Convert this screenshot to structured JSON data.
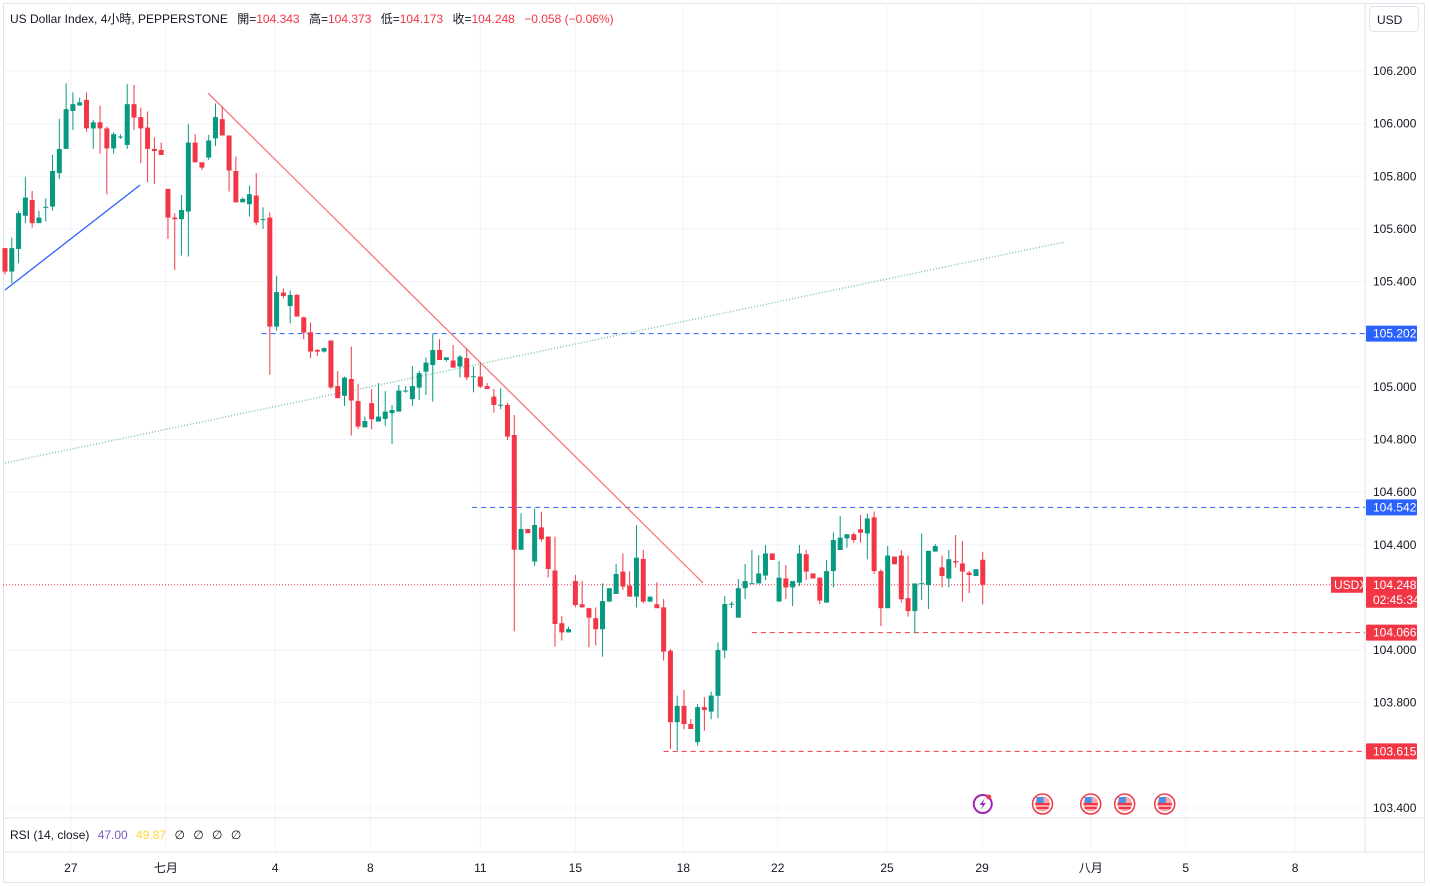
{
  "header": {
    "symbol": "US Dollar Index, 4小時, PEPPERSTONE",
    "open_label": "開=",
    "open": "104.343",
    "high_label": "高=",
    "high": "104.373",
    "low_label": "低=",
    "low": "104.173",
    "close_label": "收=",
    "close": "104.248",
    "change": "−0.058 (−0.06%)"
  },
  "currency_button": "USD",
  "rsi": {
    "label": "RSI (14, close)",
    "value1": "47.00",
    "value2": "49.87",
    "extra": [
      "∅",
      "∅",
      "∅",
      "∅"
    ],
    "color1": "#7e57c2",
    "color2": "#fdd835"
  },
  "colors": {
    "up": "#089981",
    "down": "#f23645",
    "blue": "#2962ff",
    "trend_red": "#f7787c",
    "trend_green": "#7cc4a4"
  },
  "chart_data": {
    "type": "candlestick",
    "ylim": [
      103.33,
      106.36
    ],
    "y_ticks": [
      "106.200",
      "106.000",
      "105.800",
      "105.600",
      "105.400",
      "105.000",
      "104.800",
      "104.600",
      "104.400",
      "104.000",
      "103.800",
      "103.400"
    ],
    "x_ticks": [
      {
        "label": "27",
        "bar": 10.7
      },
      {
        "label": "七月",
        "bar": 24.7
      },
      {
        "label": "4",
        "bar": 40.8
      },
      {
        "label": "8",
        "bar": 54.8
      },
      {
        "label": "11",
        "bar": 71
      },
      {
        "label": "15",
        "bar": 85
      },
      {
        "label": "18",
        "bar": 100.9
      },
      {
        "label": "22",
        "bar": 114.8
      },
      {
        "label": "25",
        "bar": 130.9
      },
      {
        "label": "29",
        "bar": 144.9
      },
      {
        "label": "八月",
        "bar": 160.9
      },
      {
        "label": "5",
        "bar": 174.9
      },
      {
        "label": "8",
        "bar": 191
      }
    ],
    "candles": [
      [
        105.527,
        105.527,
        105.428,
        105.438
      ],
      [
        105.438,
        105.567,
        105.394,
        105.527
      ],
      [
        105.524,
        105.669,
        105.47,
        105.66
      ],
      [
        105.65,
        105.798,
        105.622,
        105.719
      ],
      [
        105.71,
        105.744,
        105.605,
        105.622
      ],
      [
        105.622,
        105.669,
        105.622,
        105.643
      ],
      [
        105.682,
        105.716,
        105.628,
        105.684
      ],
      [
        105.685,
        105.881,
        105.669,
        105.82
      ],
      [
        105.812,
        106.018,
        105.79,
        105.904
      ],
      [
        105.904,
        106.153,
        105.904,
        106.055
      ],
      [
        106.048,
        106.119,
        105.976,
        106.074
      ],
      [
        106.069,
        106.099,
        106.069,
        106.081
      ],
      [
        106.09,
        106.119,
        105.97,
        105.982
      ],
      [
        105.982,
        106.014,
        105.904,
        106.005
      ],
      [
        106.005,
        106.069,
        105.886,
        105.982
      ],
      [
        105.982,
        105.989,
        105.732,
        105.906
      ],
      [
        105.906,
        105.967,
        105.886,
        105.96
      ],
      [
        105.951,
        105.96,
        105.942,
        105.951
      ],
      [
        105.919,
        106.15,
        105.904,
        106.074
      ],
      [
        106.074,
        106.147,
        105.976,
        106.023
      ],
      [
        106.025,
        106.061,
        105.85,
        105.982
      ],
      [
        105.985,
        106.046,
        105.777,
        105.904
      ],
      [
        105.904,
        105.948,
        105.77,
        105.896
      ],
      [
        105.9,
        105.928,
        105.881,
        105.881
      ],
      [
        105.752,
        105.752,
        105.562,
        105.643
      ],
      [
        105.643,
        105.66,
        105.444,
        105.637
      ],
      [
        105.637,
        105.729,
        105.499,
        105.672
      ],
      [
        105.666,
        105.998,
        105.495,
        105.928
      ],
      [
        105.928,
        105.96,
        105.853,
        105.853
      ],
      [
        105.853,
        105.853,
        105.824,
        105.833
      ],
      [
        105.871,
        105.957,
        105.862,
        105.936
      ],
      [
        105.944,
        106.077,
        105.915,
        106.025
      ],
      [
        106.017,
        106.065,
        105.955,
        105.955
      ],
      [
        105.955,
        105.955,
        105.742,
        105.822
      ],
      [
        105.82,
        105.875,
        105.701,
        105.701
      ],
      [
        105.701,
        105.72,
        105.701,
        105.714
      ],
      [
        105.694,
        105.765,
        105.647,
        105.732
      ],
      [
        105.727,
        105.812,
        105.615,
        105.624
      ],
      [
        105.637,
        105.682,
        105.6,
        105.637
      ],
      [
        105.643,
        105.663,
        105.046,
        105.229
      ],
      [
        105.229,
        105.422,
        105.213,
        105.36
      ],
      [
        105.358,
        105.374,
        105.336,
        105.345
      ],
      [
        105.307,
        105.366,
        105.241,
        105.349
      ],
      [
        105.349,
        105.353,
        105.267,
        105.267
      ],
      [
        105.264,
        105.267,
        105.181,
        105.206
      ],
      [
        105.207,
        105.245,
        105.109,
        105.134
      ],
      [
        105.14,
        105.144,
        105.117,
        105.134
      ],
      [
        105.134,
        105.15,
        105.13,
        105.147
      ],
      [
        105.176,
        105.176,
        104.992,
        104.998
      ],
      [
        105.003,
        105.06,
        104.957,
        104.957
      ],
      [
        104.966,
        105.039,
        104.928,
        105.035
      ],
      [
        105.03,
        105.153,
        104.815,
        104.948
      ],
      [
        104.946,
        105.011,
        104.839,
        104.849
      ],
      [
        104.846,
        104.887,
        104.846,
        104.87
      ],
      [
        104.938,
        104.992,
        104.839,
        104.877
      ],
      [
        104.868,
        105.014,
        104.868,
        104.887
      ],
      [
        104.878,
        104.984,
        104.852,
        104.906
      ],
      [
        104.9,
        104.931,
        104.783,
        104.912
      ],
      [
        104.906,
        105.007,
        104.906,
        104.986
      ],
      [
        104.982,
        105.003,
        104.978,
        104.986
      ],
      [
        104.953,
        105.079,
        104.928,
        105.003
      ],
      [
        104.997,
        105.062,
        104.95,
        105.052
      ],
      [
        105.058,
        105.112,
        104.969,
        105.092
      ],
      [
        105.083,
        105.2,
        104.944,
        105.14
      ],
      [
        105.14,
        105.181,
        105.102,
        105.102
      ],
      [
        105.102,
        105.112,
        105.096,
        105.112
      ],
      [
        105.1,
        105.159,
        105.073,
        105.073
      ],
      [
        105.077,
        105.121,
        105.036,
        105.115
      ],
      [
        105.109,
        105.146,
        105.026,
        105.036
      ],
      [
        105.039,
        105.077,
        104.979,
        105.04
      ],
      [
        105.039,
        105.092,
        104.995,
        105.001
      ],
      [
        105.003,
        105.014,
        104.992,
        104.992
      ],
      [
        104.963,
        104.992,
        104.902,
        104.931
      ],
      [
        104.931,
        104.995,
        104.915,
        104.932
      ],
      [
        104.931,
        104.94,
        104.798,
        104.811
      ],
      [
        104.817,
        104.893,
        104.071,
        104.381
      ],
      [
        104.381,
        104.52,
        104.381,
        104.46
      ],
      [
        104.46,
        104.46,
        104.444,
        104.444
      ],
      [
        104.336,
        104.538,
        104.319,
        104.475
      ],
      [
        104.466,
        104.526,
        104.412,
        104.421
      ],
      [
        104.431,
        104.431,
        104.276,
        104.308
      ],
      [
        104.302,
        104.431,
        104.013,
        104.099
      ],
      [
        104.102,
        104.129,
        104.036,
        104.067
      ],
      [
        104.067,
        104.089,
        104.067,
        104.08
      ],
      [
        104.262,
        104.285,
        104.162,
        104.171
      ],
      [
        104.174,
        104.262,
        104.162,
        104.162
      ],
      [
        104.159,
        104.161,
        104.01,
        104.123
      ],
      [
        104.121,
        104.162,
        104.018,
        104.079
      ],
      [
        104.079,
        104.253,
        103.975,
        104.186
      ],
      [
        104.184,
        104.235,
        104.184,
        104.235
      ],
      [
        104.213,
        104.327,
        104.213,
        104.289
      ],
      [
        104.298,
        104.367,
        104.228,
        104.241
      ],
      [
        104.245,
        104.3,
        104.203,
        104.203
      ],
      [
        104.203,
        104.475,
        104.162,
        104.351
      ],
      [
        104.346,
        104.38,
        104.178,
        104.184
      ],
      [
        104.184,
        104.203,
        104.184,
        104.203
      ],
      [
        104.174,
        104.257,
        104.159,
        104.159
      ],
      [
        104.162,
        104.194,
        103.96,
        103.994
      ],
      [
        103.997,
        104.004,
        103.624,
        103.726
      ],
      [
        103.726,
        103.827,
        103.618,
        103.788
      ],
      [
        103.788,
        103.848,
        103.699,
        103.719
      ],
      [
        103.719,
        103.738,
        103.7,
        103.7
      ],
      [
        103.65,
        103.794,
        103.637,
        103.783
      ],
      [
        103.783,
        103.821,
        103.694,
        103.772
      ],
      [
        103.766,
        103.842,
        103.737,
        103.827
      ],
      [
        103.826,
        104.029,
        103.741,
        104.0
      ],
      [
        103.998,
        104.205,
        103.969,
        104.175
      ],
      [
        104.175,
        104.184,
        104.159,
        104.176
      ],
      [
        104.123,
        104.27,
        104.123,
        104.235
      ],
      [
        104.235,
        104.327,
        104.194,
        104.262
      ],
      [
        104.253,
        104.38,
        104.253,
        104.254
      ],
      [
        104.253,
        104.361,
        104.253,
        104.291
      ],
      [
        104.283,
        104.399,
        104.266,
        104.367
      ],
      [
        104.367,
        104.367,
        104.342,
        104.342
      ],
      [
        104.184,
        104.338,
        104.184,
        104.275
      ],
      [
        104.272,
        104.323,
        104.194,
        104.238
      ],
      [
        104.238,
        104.262,
        104.167,
        104.262
      ],
      [
        104.256,
        104.399,
        104.243,
        104.367
      ],
      [
        104.364,
        104.38,
        104.266,
        104.298
      ],
      [
        104.291,
        104.291,
        104.272,
        104.272
      ],
      [
        104.275,
        104.275,
        104.175,
        104.188
      ],
      [
        104.18,
        104.342,
        104.18,
        104.3
      ],
      [
        104.3,
        104.447,
        104.238,
        104.418
      ],
      [
        104.38,
        104.509,
        104.38,
        104.427
      ],
      [
        104.424,
        104.44,
        104.389,
        104.44
      ],
      [
        104.44,
        104.446,
        104.408,
        104.418
      ],
      [
        104.459,
        104.513,
        104.408,
        104.446
      ],
      [
        104.443,
        104.519,
        104.345,
        104.5
      ],
      [
        104.504,
        104.526,
        104.289,
        104.3
      ],
      [
        104.3,
        104.307,
        104.091,
        104.159
      ],
      [
        104.159,
        104.395,
        104.159,
        104.359
      ],
      [
        104.355,
        104.355,
        104.326,
        104.326
      ],
      [
        104.359,
        104.38,
        104.18,
        104.193
      ],
      [
        104.197,
        104.359,
        104.127,
        104.148
      ],
      [
        104.148,
        104.253,
        104.064,
        104.253
      ],
      [
        104.253,
        104.443,
        104.19,
        104.254
      ],
      [
        104.247,
        104.377,
        104.156,
        104.377
      ],
      [
        104.374,
        104.403,
        104.374,
        104.395
      ],
      [
        104.314,
        104.359,
        104.238,
        104.281
      ],
      [
        104.272,
        104.38,
        104.238,
        104.345
      ],
      [
        104.338,
        104.437,
        104.314,
        104.333
      ],
      [
        104.329,
        104.414,
        104.184,
        104.298
      ],
      [
        104.294,
        104.3,
        104.216,
        104.285
      ],
      [
        104.281,
        104.307,
        104.281,
        104.307
      ],
      [
        104.343,
        104.373,
        104.173,
        104.248
      ]
    ],
    "levels": [
      {
        "price": 105.202,
        "label": "105.202",
        "color": "#2962ff",
        "from_bar": 38.8,
        "style": "dashed"
      },
      {
        "price": 104.542,
        "label": "104.542",
        "color": "#2962ff",
        "from_bar": 69.8,
        "style": "dashed"
      },
      {
        "price": 104.066,
        "label": "104.066",
        "color": "#f23645",
        "from_bar": 111,
        "style": "dashed"
      },
      {
        "price": 103.615,
        "label": "103.615",
        "color": "#f23645",
        "from_bar": 98,
        "style": "dashed"
      }
    ],
    "current_price": {
      "symbol": "USDX",
      "price": 104.248,
      "label": "104.248",
      "countdown": "02:45:34"
    },
    "trendlines": [
      {
        "color": "#2962ff",
        "style": "solid",
        "points": [
          [
            1,
            105.368
          ],
          [
            20.9,
            105.767
          ]
        ]
      },
      {
        "color": "#f7787c",
        "style": "solid",
        "points": [
          [
            30.9,
            106.116
          ],
          [
            103.8,
            104.255
          ]
        ]
      },
      {
        "color": "#7cc4a4",
        "style": "dotted",
        "points": [
          [
            1,
            104.711
          ],
          [
            157,
            105.55
          ]
        ]
      }
    ],
    "events": [
      {
        "type": "lightning-icon",
        "bar": 145
      },
      {
        "type": "us-flag-icon",
        "bar": 153.8
      },
      {
        "type": "us-flag-icon",
        "bar": 160.9
      },
      {
        "type": "us-flag-icon",
        "bar": 165.9
      },
      {
        "type": "us-flag-icon",
        "bar": 171.8
      }
    ]
  }
}
